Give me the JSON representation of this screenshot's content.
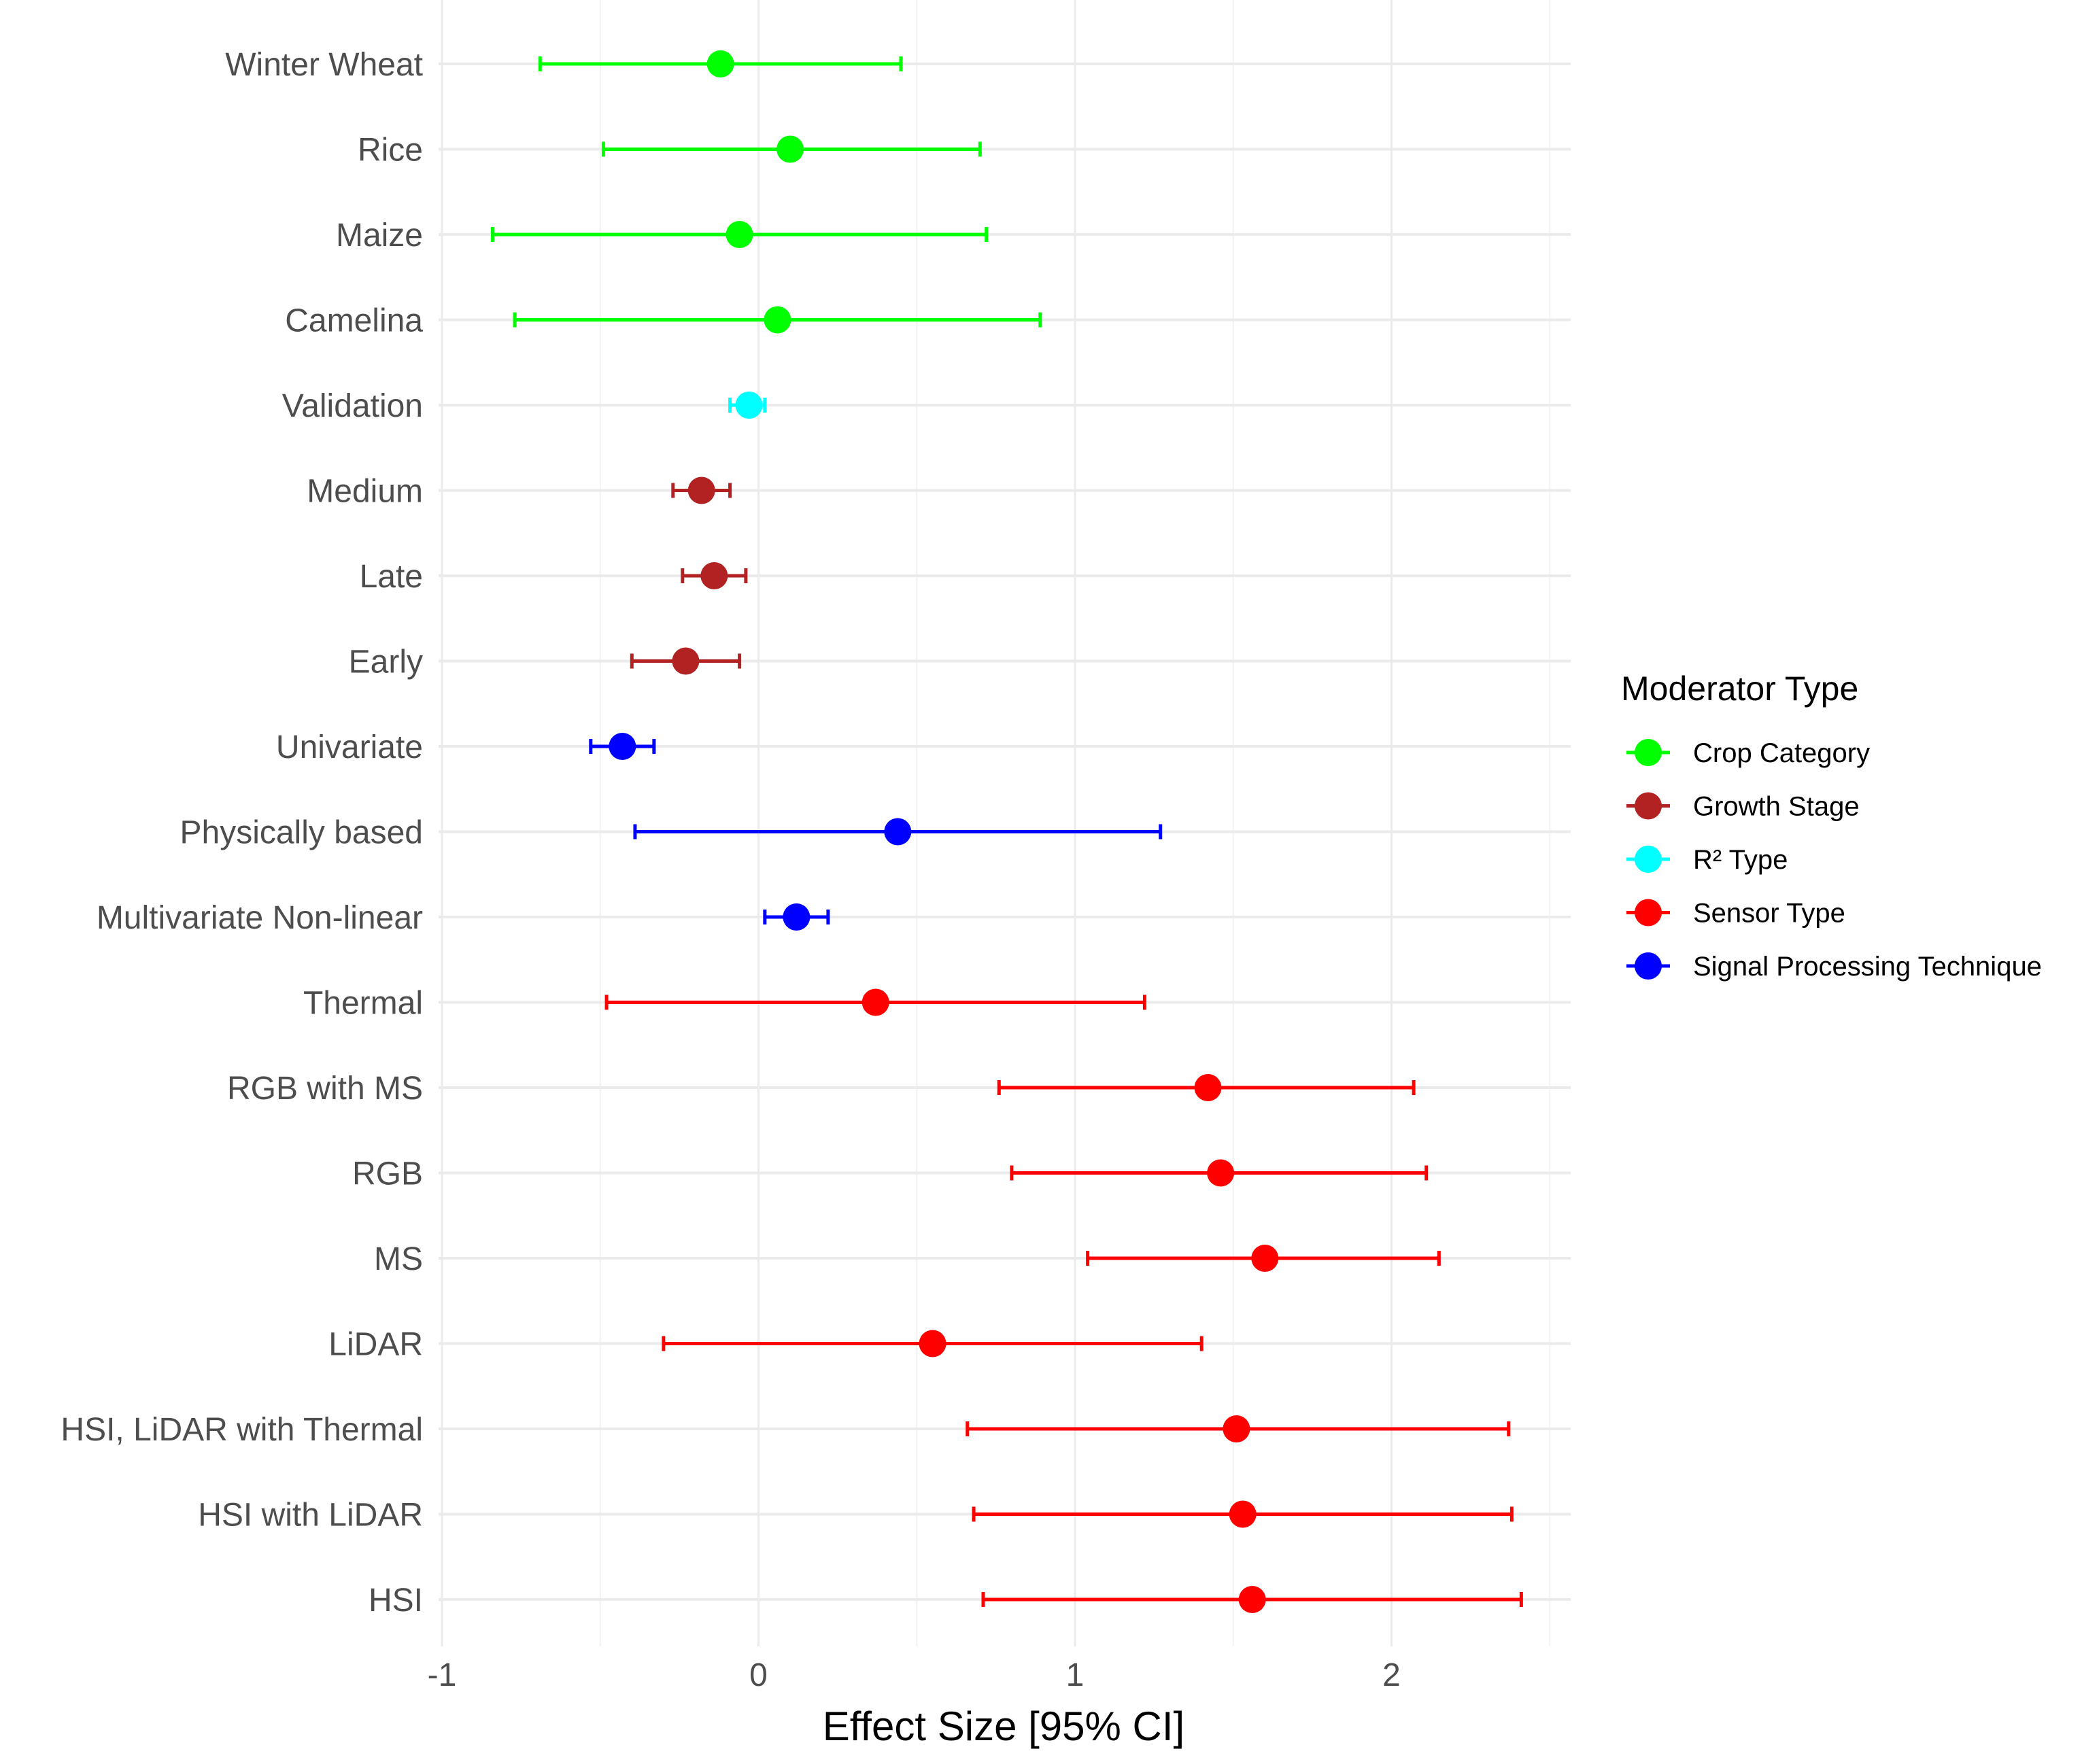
{
  "chart_data": {
    "type": "forest",
    "title": "",
    "xlabel": "Effect Size [95% CI]",
    "ylabel": "",
    "xlim": [
      -1,
      2.5
    ],
    "x_ticks": [
      {
        "value": -1,
        "label": "-1"
      },
      {
        "value": 0,
        "label": "0"
      },
      {
        "value": 1,
        "label": "1"
      },
      {
        "value": 2,
        "label": "2"
      }
    ],
    "grid": true,
    "legend": {
      "title": "Moderator Type",
      "position": "right",
      "entries": [
        {
          "key": "crop",
          "label": "Crop Category",
          "color": "#00ff00"
        },
        {
          "key": "growth",
          "label": "Growth Stage",
          "color": "#b22222"
        },
        {
          "key": "r2",
          "label": "R² Type",
          "color": "#00ffff"
        },
        {
          "key": "sensor",
          "label": "Sensor Type",
          "color": "#ff0000"
        },
        {
          "key": "signal",
          "label": "Signal Processing Technique",
          "color": "#0000ff"
        }
      ]
    },
    "rows": [
      {
        "label": "Winter Wheat",
        "group": "crop",
        "estimate": -0.12,
        "lower": -0.69,
        "upper": 0.45
      },
      {
        "label": "Rice",
        "group": "crop",
        "estimate": 0.1,
        "lower": -0.49,
        "upper": 0.7
      },
      {
        "label": "Maize",
        "group": "crop",
        "estimate": -0.06,
        "lower": -0.84,
        "upper": 0.72
      },
      {
        "label": "Camelina",
        "group": "crop",
        "estimate": 0.06,
        "lower": -0.77,
        "upper": 0.89
      },
      {
        "label": "Validation",
        "group": "r2",
        "estimate": -0.03,
        "lower": -0.09,
        "upper": 0.02
      },
      {
        "label": "Medium",
        "group": "growth",
        "estimate": -0.18,
        "lower": -0.27,
        "upper": -0.09
      },
      {
        "label": "Late",
        "group": "growth",
        "estimate": -0.14,
        "lower": -0.24,
        "upper": -0.04
      },
      {
        "label": "Early",
        "group": "growth",
        "estimate": -0.23,
        "lower": -0.4,
        "upper": -0.06
      },
      {
        "label": "Univariate",
        "group": "signal",
        "estimate": -0.43,
        "lower": -0.53,
        "upper": -0.33
      },
      {
        "label": "Physically based",
        "group": "signal",
        "estimate": 0.44,
        "lower": -0.39,
        "upper": 1.27
      },
      {
        "label": "Multivariate Non-linear",
        "group": "signal",
        "estimate": 0.12,
        "lower": 0.02,
        "upper": 0.22
      },
      {
        "label": "Thermal",
        "group": "sensor",
        "estimate": 0.37,
        "lower": -0.48,
        "upper": 1.22
      },
      {
        "label": "RGB with MS",
        "group": "sensor",
        "estimate": 1.42,
        "lower": 0.76,
        "upper": 2.07
      },
      {
        "label": "RGB",
        "group": "sensor",
        "estimate": 1.46,
        "lower": 0.8,
        "upper": 2.11
      },
      {
        "label": "MS",
        "group": "sensor",
        "estimate": 1.6,
        "lower": 1.04,
        "upper": 2.15
      },
      {
        "label": "LiDAR",
        "group": "sensor",
        "estimate": 0.55,
        "lower": -0.3,
        "upper": 1.4
      },
      {
        "label": "HSI, LiDAR with Thermal",
        "group": "sensor",
        "estimate": 1.51,
        "lower": 0.66,
        "upper": 2.37
      },
      {
        "label": "HSI with LiDAR",
        "group": "sensor",
        "estimate": 1.53,
        "lower": 0.68,
        "upper": 2.38
      },
      {
        "label": "HSI",
        "group": "sensor",
        "estimate": 1.56,
        "lower": 0.71,
        "upper": 2.41
      }
    ]
  }
}
